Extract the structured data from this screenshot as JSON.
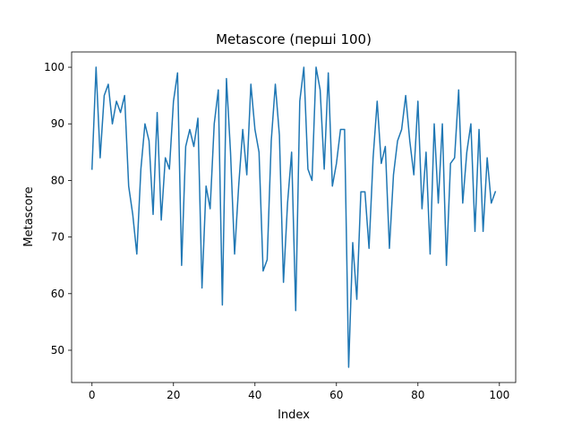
{
  "chart_data": {
    "type": "line",
    "title": "Metascore (перші 100)",
    "xlabel": "Index",
    "ylabel": "Metascore",
    "xlim": [
      -5,
      104
    ],
    "ylim": [
      44.3,
      102.7
    ],
    "xticks": [
      0,
      20,
      40,
      60,
      80,
      100
    ],
    "yticks": [
      50,
      60,
      70,
      80,
      90,
      100
    ],
    "grid": false,
    "line_color": "#1f77b4",
    "series": [
      {
        "x": [
          0,
          1,
          2,
          3,
          4,
          5,
          6,
          7,
          8,
          9,
          10,
          11,
          12,
          13,
          14,
          15,
          16,
          17,
          18,
          19,
          20,
          21,
          22,
          23,
          24,
          25,
          26,
          27,
          28,
          29,
          30,
          31,
          32,
          33,
          34,
          35,
          36,
          37,
          38,
          39,
          40,
          41,
          42,
          43,
          44,
          45,
          46,
          47,
          48,
          49,
          50,
          51,
          52,
          53,
          54,
          55,
          56,
          57,
          58,
          59,
          60,
          61,
          62,
          63,
          64,
          65,
          66,
          67,
          68,
          69,
          70,
          71,
          72,
          73,
          74,
          75,
          76,
          77,
          78,
          79,
          80,
          81,
          82,
          83,
          84,
          85,
          86,
          87,
          88,
          89,
          90,
          91,
          92,
          93,
          94,
          95,
          96,
          97,
          98,
          99
        ],
        "values": [
          82,
          100,
          84,
          95,
          97,
          90,
          94,
          92,
          95,
          79,
          74,
          67,
          82,
          90,
          87,
          74,
          92,
          73,
          84,
          82,
          94,
          99,
          65,
          86,
          89,
          86,
          91,
          61,
          79,
          75,
          90,
          96,
          58,
          98,
          85,
          67,
          79,
          89,
          81,
          97,
          89,
          85,
          64,
          66,
          87,
          97,
          88,
          62,
          76,
          85,
          57,
          94,
          100,
          82,
          80,
          100,
          96,
          82,
          99,
          79,
          83,
          89,
          89,
          47,
          69,
          59,
          78,
          78,
          68,
          84,
          94,
          83,
          86,
          68,
          81,
          87,
          89,
          95,
          87,
          81,
          94,
          75,
          85,
          67,
          90,
          76,
          90,
          65,
          83,
          84,
          96,
          76,
          85,
          90,
          71,
          89,
          71,
          84,
          76,
          78
        ]
      }
    ]
  }
}
